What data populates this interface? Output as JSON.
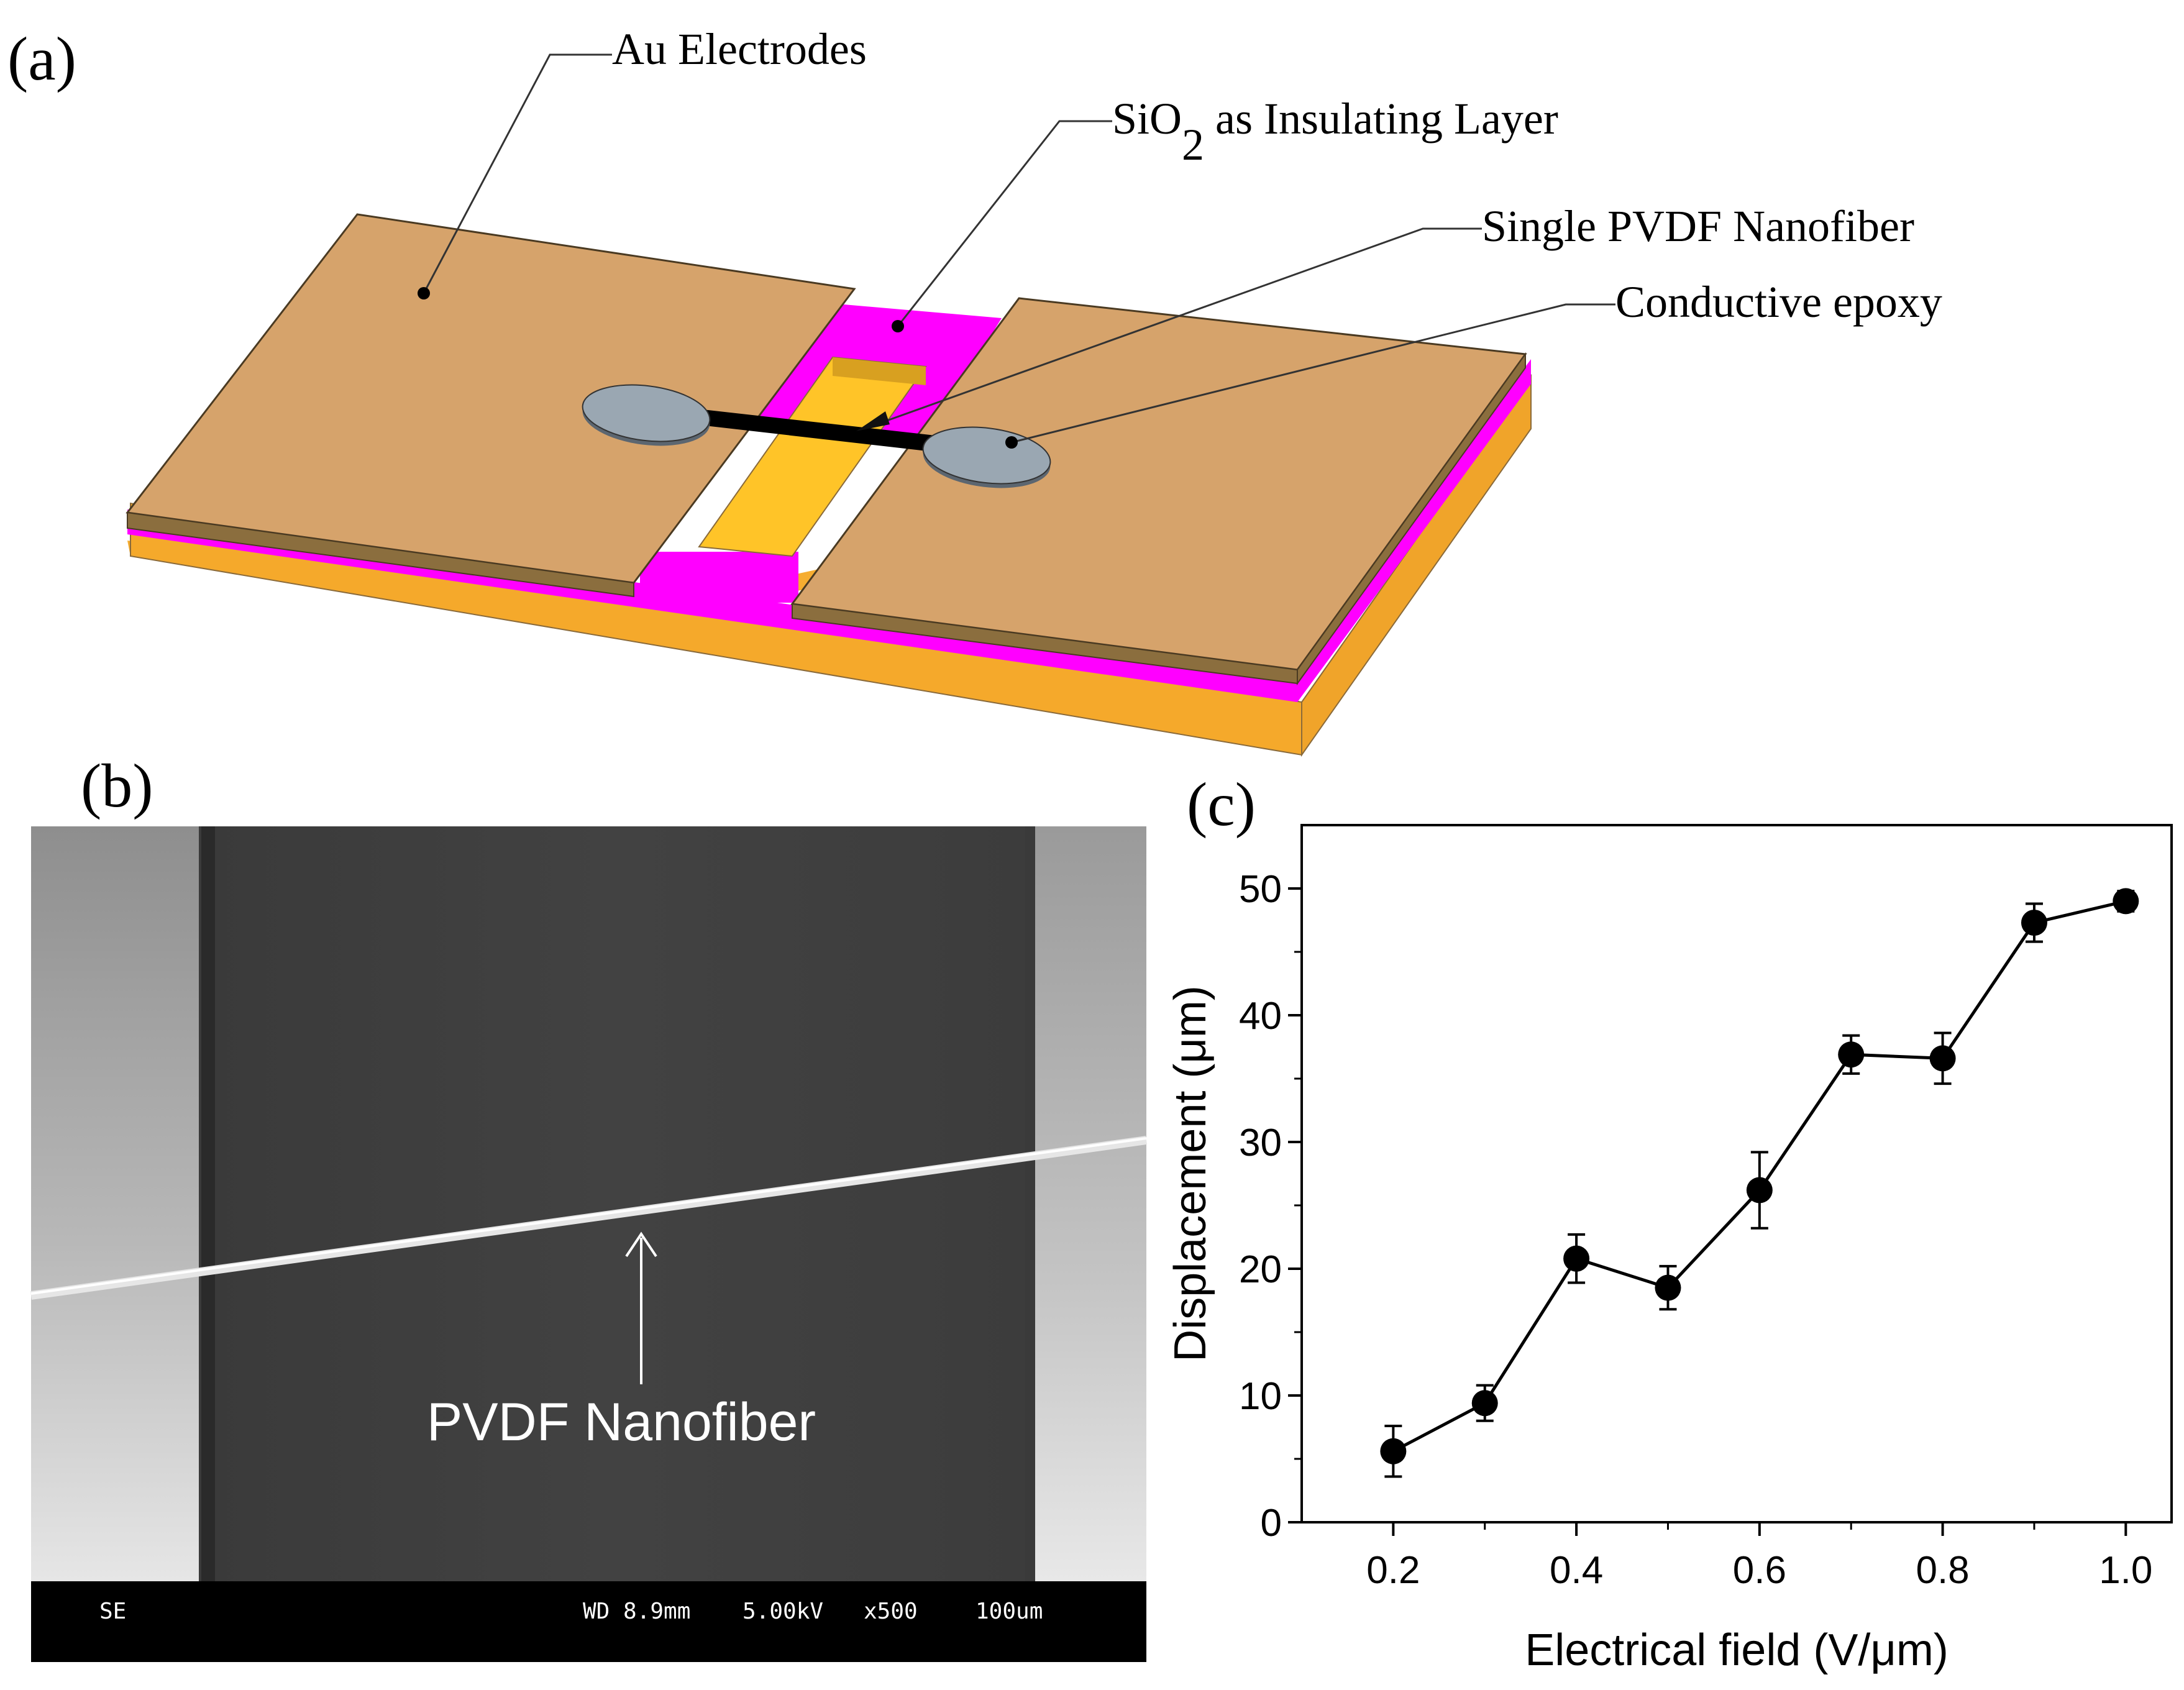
{
  "panel_a": {
    "label": "(a)",
    "annotations": {
      "electrodes": "Au Electrodes",
      "insulating_prefix": "SiO",
      "insulating_sub": "2",
      "insulating_suffix": " as Insulating Layer",
      "nanofiber": "Single PVDF Nanofiber",
      "epoxy": "Conductive epoxy"
    },
    "colors": {
      "electrode_top": "#d6a36b",
      "electrode_edge": "#8b6e3e",
      "insulator": "#ff00ff",
      "substrate": "#f6ad30",
      "gap_fill": "#ffc020",
      "epoxy": "#9aa7b2",
      "fiber": "#000000"
    }
  },
  "panel_b": {
    "label": "(b)",
    "caption": "PVDF Nanofiber",
    "sem_bar": {
      "mode": "SE",
      "wd": "WD 8.9mm",
      "voltage": "5.00kV",
      "magnification": "x500",
      "scale": "100um"
    }
  },
  "panel_c": {
    "label": "(c)"
  },
  "chart_data": {
    "type": "line",
    "title": "",
    "xlabel": "Electrical field (V/μm)",
    "ylabel": "Displacement (μm)",
    "xlim": [
      0.1,
      1.05
    ],
    "ylim": [
      0,
      55
    ],
    "xticks": [
      0.2,
      0.4,
      0.6,
      0.8,
      1.0
    ],
    "xtick_labels": [
      "0.2",
      "0.4",
      "0.6",
      "0.8",
      "1.0"
    ],
    "yticks": [
      0,
      10,
      20,
      30,
      40,
      50
    ],
    "ytick_labels": [
      "0",
      "10",
      "20",
      "30",
      "40",
      "50"
    ],
    "series": [
      {
        "name": "Displacement",
        "x": [
          0.2,
          0.3,
          0.4,
          0.5,
          0.6,
          0.7,
          0.8,
          0.9,
          1.0
        ],
        "y": [
          5.6,
          9.4,
          20.8,
          18.5,
          26.2,
          36.9,
          36.6,
          47.3,
          49.0
        ],
        "yerr": [
          2.0,
          1.4,
          1.9,
          1.7,
          3.0,
          1.5,
          2.0,
          1.5,
          0.8
        ]
      }
    ]
  }
}
